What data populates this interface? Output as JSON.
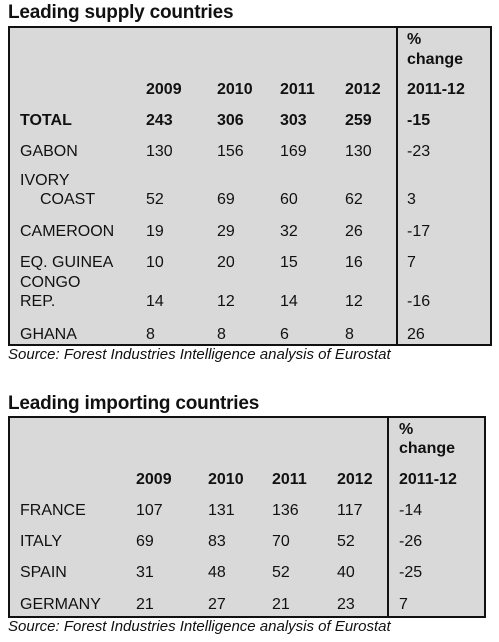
{
  "supply": {
    "title": "Leading supply countries",
    "change_label_1": "%",
    "change_label_2": "change",
    "change_label_3": "2011-12",
    "years": [
      "2009",
      "2010",
      "2011",
      "2012"
    ],
    "rows": [
      {
        "name1": "TOTAL",
        "name2": "",
        "v": [
          "243",
          "306",
          "303",
          "259"
        ],
        "chg": "-15",
        "bold": true
      },
      {
        "name1": "GABON",
        "name2": "",
        "v": [
          "130",
          "156",
          "169",
          "130"
        ],
        "chg": "-23"
      },
      {
        "name1": "IVORY",
        "name2": "COAST",
        "v": [
          "52",
          "69",
          "60",
          "62"
        ],
        "chg": "3"
      },
      {
        "name1": "CAMEROON",
        "name2": "",
        "v": [
          "19",
          "29",
          "32",
          "26"
        ],
        "chg": "-17"
      },
      {
        "name1": "EQ. GUINEA",
        "name2": "",
        "v": [
          "10",
          "20",
          "15",
          "16"
        ],
        "chg": "7"
      },
      {
        "name1": "CONGO",
        "name2": "REP.",
        "v": [
          "14",
          "12",
          "14",
          "12"
        ],
        "chg": "-16"
      },
      {
        "name1": "GHANA",
        "name2": "",
        "v": [
          "8",
          "8",
          "6",
          "8"
        ],
        "chg": "26"
      }
    ],
    "source": "Source: Forest Industries Intelligence analysis of Eurostat"
  },
  "importing": {
    "title": "Leading importing countries",
    "change_label_1": "%",
    "change_label_2": "change",
    "change_label_3": "2011-12",
    "years": [
      "2009",
      "2010",
      "2011",
      "2012"
    ],
    "rows": [
      {
        "name1": "FRANCE",
        "v": [
          "107",
          "131",
          "136",
          "117"
        ],
        "chg": "-14"
      },
      {
        "name1": "ITALY",
        "v": [
          "69",
          "83",
          "70",
          "52"
        ],
        "chg": "-26"
      },
      {
        "name1": "SPAIN",
        "v": [
          "31",
          "48",
          "52",
          "40"
        ],
        "chg": "-25"
      },
      {
        "name1": "GERMANY",
        "v": [
          "21",
          "27",
          "21",
          "23"
        ],
        "chg": "7"
      }
    ],
    "source": "Source: Forest Industries Intelligence analysis of Eurostat"
  }
}
